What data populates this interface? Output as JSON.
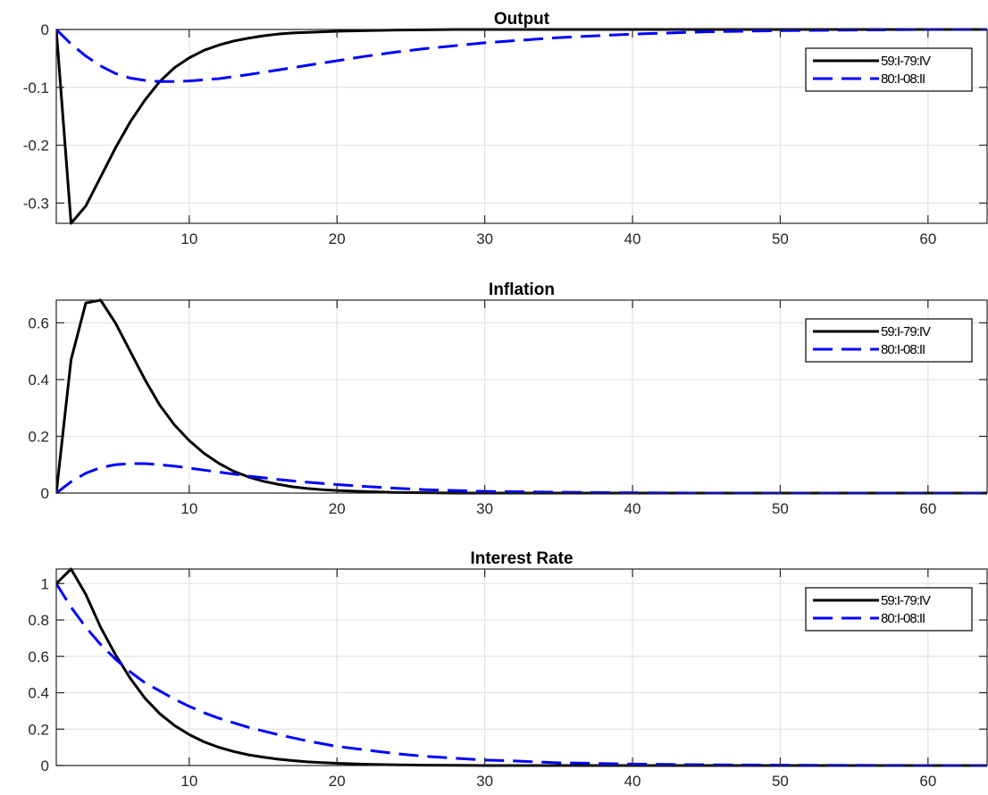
{
  "chart_data": [
    {
      "type": "line",
      "title": "Output",
      "xlabel": "",
      "ylabel": "",
      "xlim": [
        1,
        64
      ],
      "ylim": [
        -0.335,
        0
      ],
      "xticks": [
        10,
        20,
        30,
        40,
        50,
        60
      ],
      "yticks": [
        -0.3,
        -0.2,
        -0.1,
        0
      ],
      "ytick_labels": [
        "-0.3",
        "-0.2",
        "-0.1",
        "0"
      ],
      "grid": true,
      "legend_position": "top-right",
      "series": [
        {
          "name": "59:I-79:IV",
          "color": "#000000",
          "dash": "solid",
          "x": [
            1,
            2,
            3,
            4,
            5,
            6,
            7,
            8,
            9,
            10,
            11,
            12,
            13,
            14,
            15,
            16,
            17,
            18,
            19,
            20,
            22,
            24,
            26,
            28,
            30,
            35,
            40,
            45,
            50,
            55,
            60,
            64
          ],
          "y": [
            0,
            -0.335,
            -0.305,
            -0.255,
            -0.205,
            -0.16,
            -0.122,
            -0.09,
            -0.066,
            -0.049,
            -0.036,
            -0.027,
            -0.02,
            -0.015,
            -0.011,
            -0.008,
            -0.006,
            -0.005,
            -0.004,
            -0.003,
            -0.002,
            -0.001,
            -0.0005,
            0,
            0,
            0,
            0,
            0,
            0,
            0,
            0,
            0
          ]
        },
        {
          "name": "80:I-08:II",
          "color": "#0000ff",
          "dash": "dashed",
          "x": [
            1,
            2,
            3,
            4,
            5,
            6,
            7,
            8,
            9,
            10,
            12,
            14,
            16,
            18,
            20,
            22,
            24,
            26,
            28,
            30,
            35,
            40,
            45,
            50,
            55,
            60,
            64
          ],
          "y": [
            0,
            -0.025,
            -0.046,
            -0.063,
            -0.076,
            -0.084,
            -0.088,
            -0.09,
            -0.09,
            -0.089,
            -0.085,
            -0.078,
            -0.07,
            -0.062,
            -0.054,
            -0.046,
            -0.039,
            -0.033,
            -0.028,
            -0.023,
            -0.014,
            -0.008,
            -0.004,
            -0.002,
            -0.001,
            0,
            0
          ]
        }
      ]
    },
    {
      "type": "line",
      "title": "Inflation",
      "xlabel": "",
      "ylabel": "",
      "xlim": [
        1,
        64
      ],
      "ylim": [
        0,
        0.68
      ],
      "xticks": [
        10,
        20,
        30,
        40,
        50,
        60
      ],
      "yticks": [
        0,
        0.2,
        0.4,
        0.6
      ],
      "ytick_labels": [
        "0",
        "0.2",
        "0.4",
        "0.6"
      ],
      "grid": true,
      "legend_position": "top-right",
      "series": [
        {
          "name": "59:I-79:IV",
          "color": "#000000",
          "dash": "solid",
          "x": [
            1,
            2,
            3,
            4,
            5,
            6,
            7,
            8,
            9,
            10,
            11,
            12,
            13,
            14,
            15,
            16,
            17,
            18,
            19,
            20,
            22,
            24,
            26,
            28,
            30,
            35,
            40,
            45,
            50,
            55,
            60,
            64
          ],
          "y": [
            0,
            0.47,
            0.67,
            0.68,
            0.6,
            0.5,
            0.4,
            0.31,
            0.24,
            0.185,
            0.14,
            0.105,
            0.077,
            0.057,
            0.042,
            0.031,
            0.022,
            0.016,
            0.012,
            0.009,
            0.005,
            0.002,
            0.001,
            0,
            0,
            0,
            0,
            0,
            0,
            0,
            0,
            0
          ]
        },
        {
          "name": "80:I-08:II",
          "color": "#0000ff",
          "dash": "dashed",
          "x": [
            1,
            2,
            3,
            4,
            5,
            6,
            7,
            8,
            9,
            10,
            12,
            14,
            16,
            18,
            20,
            22,
            24,
            26,
            28,
            30,
            35,
            40,
            45,
            50,
            55,
            60,
            64
          ],
          "y": [
            0,
            0.04,
            0.07,
            0.09,
            0.1,
            0.104,
            0.104,
            0.1,
            0.095,
            0.088,
            0.074,
            0.06,
            0.048,
            0.038,
            0.03,
            0.023,
            0.017,
            0.012,
            0.009,
            0.006,
            0.003,
            0.001,
            0,
            0,
            0,
            0,
            0
          ]
        }
      ]
    },
    {
      "type": "line",
      "title": "Interest Rate",
      "xlabel": "",
      "ylabel": "",
      "xlim": [
        1,
        64
      ],
      "ylim": [
        0,
        1.08
      ],
      "xticks": [
        10,
        20,
        30,
        40,
        50,
        60
      ],
      "yticks": [
        0,
        0.2,
        0.4,
        0.6,
        0.8,
        1
      ],
      "ytick_labels": [
        "0",
        "0.2",
        "0.4",
        "0.6",
        "0.8",
        "1"
      ],
      "grid": true,
      "legend_position": "top-right",
      "series": [
        {
          "name": "59:I-79:IV",
          "color": "#000000",
          "dash": "solid",
          "x": [
            1,
            2,
            3,
            4,
            5,
            6,
            7,
            8,
            9,
            10,
            11,
            12,
            13,
            14,
            15,
            16,
            17,
            18,
            19,
            20,
            22,
            24,
            26,
            28,
            30,
            35,
            40,
            45,
            50,
            55,
            60,
            64
          ],
          "y": [
            1,
            1.08,
            0.94,
            0.76,
            0.61,
            0.48,
            0.37,
            0.285,
            0.22,
            0.17,
            0.13,
            0.1,
            0.077,
            0.059,
            0.046,
            0.035,
            0.027,
            0.02,
            0.016,
            0.012,
            0.007,
            0.004,
            0.002,
            0.001,
            0,
            0,
            0,
            0,
            0,
            0,
            0,
            0
          ]
        },
        {
          "name": "80:I-08:II",
          "color": "#0000ff",
          "dash": "dashed",
          "x": [
            1,
            2,
            3,
            4,
            5,
            6,
            7,
            8,
            9,
            10,
            11,
            12,
            14,
            16,
            18,
            20,
            22,
            24,
            26,
            28,
            30,
            32,
            35,
            40,
            45,
            50,
            55,
            60,
            64
          ],
          "y": [
            1,
            0.87,
            0.76,
            0.665,
            0.585,
            0.515,
            0.455,
            0.41,
            0.365,
            0.325,
            0.29,
            0.26,
            0.21,
            0.17,
            0.135,
            0.105,
            0.085,
            0.065,
            0.05,
            0.04,
            0.03,
            0.025,
            0.015,
            0.008,
            0.004,
            0.002,
            0.001,
            0,
            0
          ]
        }
      ]
    }
  ]
}
